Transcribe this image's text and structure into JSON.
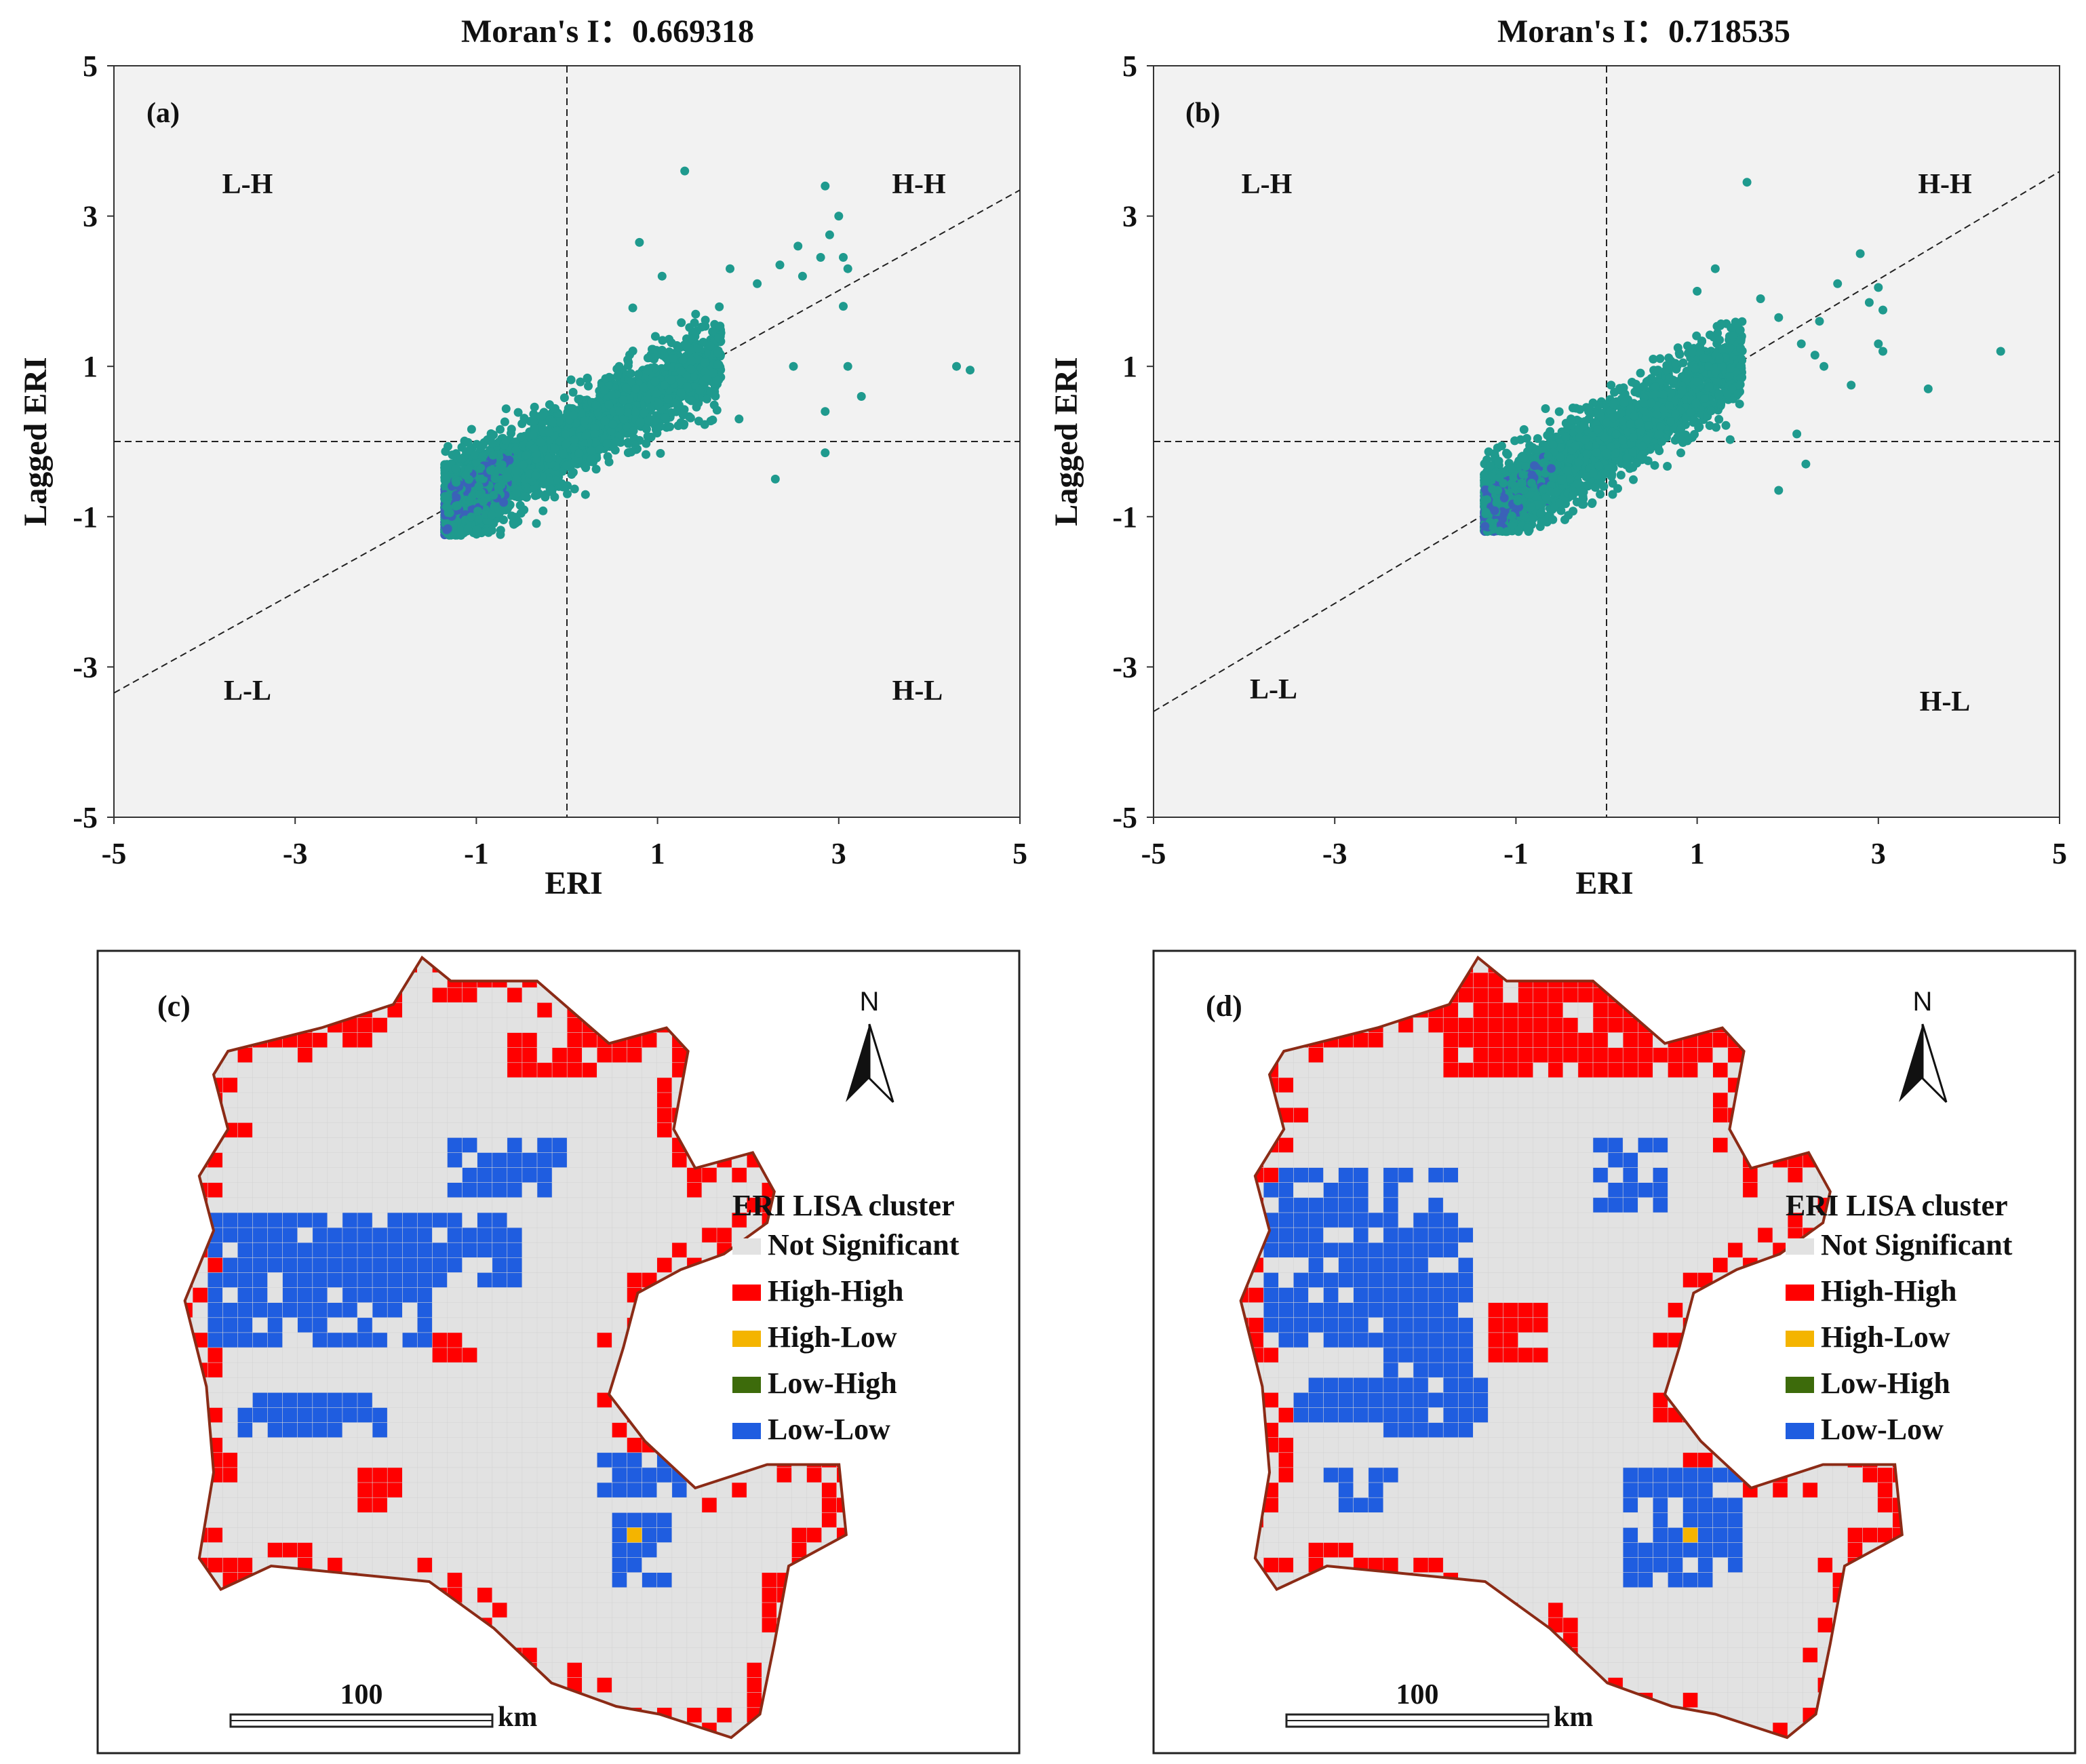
{
  "chart_data": [
    {
      "type": "scatter",
      "panel": "(a)",
      "title": "Moran's I：0.669318",
      "xlabel": "ERI",
      "ylabel": "Lagged ERI",
      "xlim": [
        -5,
        5
      ],
      "ylim": [
        -5,
        5
      ],
      "xticks": [
        "-5",
        "-3",
        "-1",
        "1",
        "3",
        "5"
      ],
      "yticks": [
        "5",
        "3",
        "1",
        "-1",
        "-3",
        "-5"
      ],
      "quadrant_labels": [
        "L-H",
        "H-H",
        "L-L",
        "H-L"
      ],
      "reference_lines": {
        "x": 0,
        "y": 0
      },
      "regression_slope": 0.669318,
      "cluster": {
        "x_min": -1.35,
        "x_max": 1.7,
        "y_min": -1.25,
        "y_max": 1.8
      },
      "outliers": [
        [
          1.3,
          3.6
        ],
        [
          2.85,
          3.4
        ],
        [
          3.0,
          3.0
        ],
        [
          2.9,
          2.75
        ],
        [
          2.8,
          2.45
        ],
        [
          2.55,
          2.6
        ],
        [
          2.35,
          2.35
        ],
        [
          2.6,
          2.2
        ],
        [
          3.05,
          2.45
        ],
        [
          3.1,
          2.3
        ],
        [
          0.8,
          2.65
        ],
        [
          1.05,
          2.2
        ],
        [
          2.1,
          2.1
        ],
        [
          1.8,
          2.3
        ],
        [
          3.05,
          1.8
        ],
        [
          3.1,
          1.0
        ],
        [
          3.25,
          0.6
        ],
        [
          4.3,
          1.0
        ],
        [
          4.45,
          0.95
        ],
        [
          2.85,
          0.4
        ],
        [
          2.3,
          -0.5
        ],
        [
          2.85,
          -0.15
        ],
        [
          1.9,
          0.3
        ],
        [
          2.5,
          1.0
        ]
      ]
    },
    {
      "type": "scatter",
      "panel": "(b)",
      "title": "Moran's I：0.718535",
      "xlabel": "ERI",
      "ylabel": "Lagged ERI",
      "xlim": [
        -5,
        5
      ],
      "ylim": [
        -5,
        5
      ],
      "xticks": [
        "-5",
        "-3",
        "-1",
        "1",
        "3",
        "5"
      ],
      "yticks": [
        "5",
        "3",
        "1",
        "-1",
        "-3",
        "-5"
      ],
      "quadrant_labels": [
        "L-H",
        "H-H",
        "L-L",
        "H-L"
      ],
      "reference_lines": {
        "x": 0,
        "y": 0
      },
      "regression_slope": 0.718535,
      "cluster": {
        "x_min": -1.35,
        "x_max": 1.5,
        "y_min": -1.2,
        "y_max": 1.6
      },
      "outliers": [
        [
          1.55,
          3.45
        ],
        [
          2.8,
          2.5
        ],
        [
          2.55,
          2.1
        ],
        [
          3.0,
          2.05
        ],
        [
          2.9,
          1.85
        ],
        [
          3.05,
          1.75
        ],
        [
          2.35,
          1.6
        ],
        [
          2.15,
          1.3
        ],
        [
          2.3,
          1.15
        ],
        [
          1.7,
          1.9
        ],
        [
          1.9,
          1.65
        ],
        [
          3.0,
          1.3
        ],
        [
          3.05,
          1.2
        ],
        [
          2.7,
          0.75
        ],
        [
          3.55,
          0.7
        ],
        [
          4.35,
          1.2
        ],
        [
          2.1,
          0.1
        ],
        [
          1.9,
          -0.65
        ],
        [
          2.2,
          -0.3
        ],
        [
          1.2,
          2.3
        ],
        [
          1.0,
          2.0
        ],
        [
          2.4,
          1.0
        ]
      ]
    }
  ],
  "maps": [
    {
      "panel": "(c)",
      "north_label": "N",
      "legend_title": "ERI  LISA cluster",
      "legend_items": [
        {
          "label": "Not Significant",
          "color": "#e2e2e2"
        },
        {
          "label": "High-High",
          "color": "#ff0000"
        },
        {
          "label": "High-Low",
          "color": "#f4b400"
        },
        {
          "label": "Low-High",
          "color": "#3d6b0b"
        },
        {
          "label": "Low-Low",
          "color": "#1f5de0"
        }
      ],
      "scale_label": "100",
      "scale_unit": "km"
    },
    {
      "panel": "(d)",
      "north_label": "N",
      "legend_title": "ERI  LISA cluster",
      "legend_items": [
        {
          "label": "Not Significant",
          "color": "#e2e2e2"
        },
        {
          "label": "High-High",
          "color": "#ff0000"
        },
        {
          "label": "High-Low",
          "color": "#f4b400"
        },
        {
          "label": "Low-High",
          "color": "#3d6b0b"
        },
        {
          "label": "Low-Low",
          "color": "#1f5de0"
        }
      ],
      "scale_label": "100",
      "scale_unit": "km"
    }
  ],
  "colors": {
    "point": "#1f9a8e",
    "point_core": "#3a62b8",
    "plot_bg": "#f2f2f2",
    "boundary": "#8b2b16"
  }
}
